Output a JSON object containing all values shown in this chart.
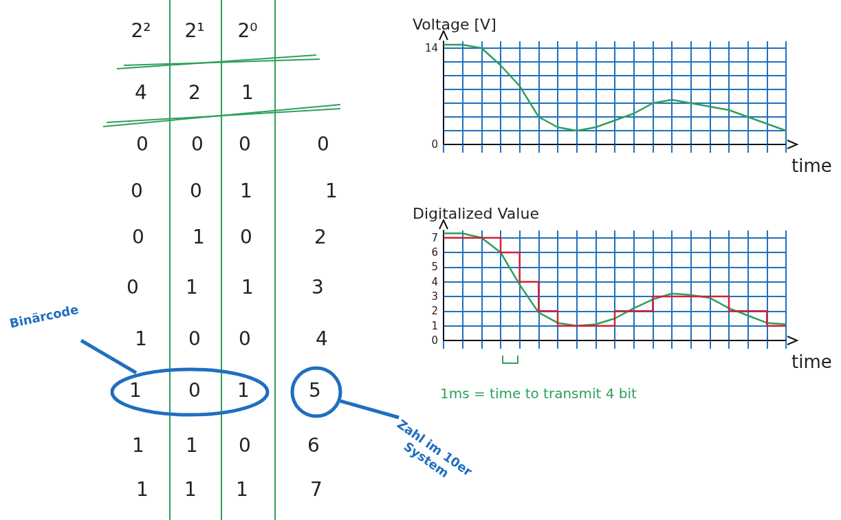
{
  "chart_data": [
    {
      "type": "other",
      "annotations": [
        "2²",
        "2¹",
        "2⁰",
        "4",
        "2",
        "1",
        "0",
        "0",
        "0",
        "0",
        "0",
        "0",
        "1",
        "1",
        "0",
        "1",
        "0",
        "2",
        "0",
        "1",
        "1",
        "3",
        "1",
        "0",
        "0",
        "4",
        "1",
        "0",
        "1",
        "5",
        "1",
        "1",
        "0",
        "6",
        "1",
        "1",
        "1",
        "7",
        "Binärcode",
        "Zahl im 10er System"
      ]
    },
    {
      "type": "line",
      "ylabel": "Voltage [V]",
      "xlabel": "time",
      "categories": [
        null,
        null,
        null,
        null,
        null,
        null,
        null,
        null,
        null,
        null,
        null,
        null,
        null,
        null,
        null,
        null,
        null,
        null,
        null
      ],
      "ylim": [
        0,
        15
      ],
      "yticks": [
        0,
        {
          "value": 2,
          "label": null
        },
        {
          "value": 4,
          "label": null
        },
        {
          "value": 6,
          "label": null
        },
        {
          "value": 8,
          "label": null
        },
        {
          "value": 10,
          "label": null
        },
        {
          "value": 12,
          "label": null
        },
        14
      ],
      "grid": true,
      "series": [
        {
          "color": "#2ca05a",
          "values": [
            14.5,
            14.5,
            14,
            11.5,
            8.5,
            4,
            2.5,
            2,
            2.5,
            3.5,
            4.5,
            6,
            6.5,
            6,
            5.5,
            5,
            4,
            3,
            2
          ]
        }
      ]
    },
    {
      "type": "line",
      "ylabel": "Digitalized Value",
      "xlabel": "time",
      "categories": [
        null,
        null,
        null,
        null,
        null,
        null,
        null,
        null,
        null,
        null,
        null,
        null,
        null,
        null,
        null,
        null,
        null,
        null,
        null
      ],
      "ylim": [
        0,
        7.5
      ],
      "yticks": [
        0,
        1,
        2,
        3,
        4,
        5,
        6,
        7
      ],
      "grid": true,
      "annotations": [
        "1ms = time to transmit 4 bit"
      ],
      "series": [
        {
          "type": "line",
          "color": "#2ca05a",
          "values": [
            7.3,
            7.3,
            7,
            6,
            3.8,
            1.9,
            1.2,
            1,
            1.1,
            1.5,
            2.2,
            2.8,
            3.2,
            3.1,
            2.9,
            2.2,
            1.7,
            1.2,
            1.1
          ]
        },
        {
          "type": "step",
          "color": "#d0203a",
          "values": [
            7,
            7,
            7,
            6,
            4,
            2,
            1,
            1,
            1,
            2,
            2,
            3,
            3,
            3,
            3,
            2,
            2,
            1,
            1
          ]
        }
      ]
    }
  ]
}
